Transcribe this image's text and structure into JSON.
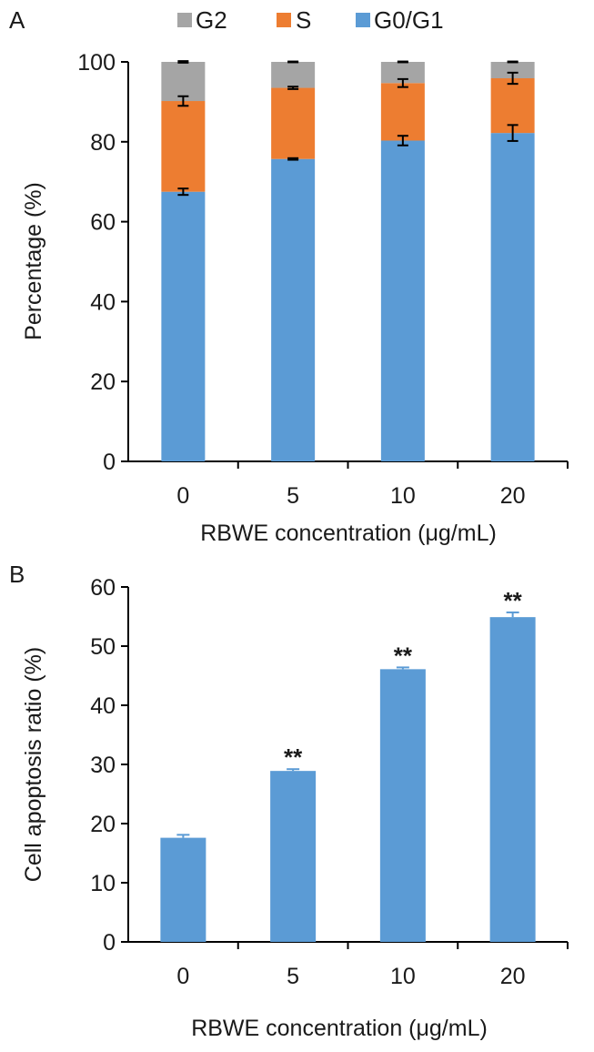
{
  "figure": {
    "panels": [
      {
        "label": "A"
      },
      {
        "label": "B"
      }
    ]
  },
  "chart_data": [
    {
      "type": "bar",
      "stacked": true,
      "panel": "A",
      "categories": [
        "0",
        "5",
        "10",
        "20"
      ],
      "xlabel": "RBWE concentration (μg/mL)",
      "ylabel": "Percentage (%)",
      "ylim": [
        0,
        100
      ],
      "yticks": [
        0,
        20,
        40,
        60,
        80,
        100
      ],
      "legend_position": "top",
      "grid": false,
      "series": [
        {
          "name": "G0/G1",
          "color": "#5b9bd5",
          "values": [
            67.5,
            75.7,
            80.3,
            82.2
          ],
          "errors": [
            0.8,
            0.2,
            1.2,
            2.0
          ]
        },
        {
          "name": "S",
          "color": "#ed7d31",
          "values": [
            22.7,
            17.8,
            14.4,
            13.7
          ],
          "errors": [
            1.2,
            0.3,
            1.0,
            1.4
          ]
        },
        {
          "name": "G2",
          "color": "#a5a5a5",
          "values": [
            9.8,
            6.5,
            5.3,
            4.1
          ],
          "errors": [
            0.2,
            0.1,
            0.1,
            0.1
          ]
        }
      ]
    },
    {
      "type": "bar",
      "panel": "B",
      "categories": [
        "0",
        "5",
        "10",
        "20"
      ],
      "values": [
        17.6,
        28.9,
        46.1,
        54.9
      ],
      "errors": [
        0.5,
        0.3,
        0.3,
        0.8
      ],
      "annotations": [
        "",
        "**",
        "**",
        "**"
      ],
      "color": "#5b9bd5",
      "xlabel": "RBWE concentration (μg/mL)",
      "ylabel": "Cell apoptosis ratio (%)",
      "ylim": [
        0,
        60
      ],
      "yticks": [
        0,
        10,
        20,
        30,
        40,
        50,
        60
      ],
      "grid": false
    }
  ]
}
